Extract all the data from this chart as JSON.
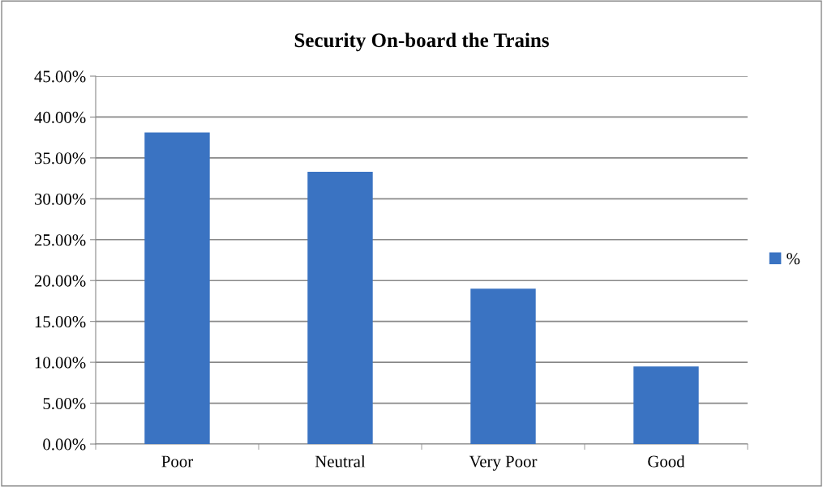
{
  "chart_data": {
    "type": "bar",
    "title": "Security On-board the Trains",
    "categories": [
      "Poor",
      "Neutral",
      "Very Poor",
      "Good"
    ],
    "series": [
      {
        "name": "%",
        "color": "#3a73c2",
        "values": [
          38.1,
          33.3,
          19.0,
          9.5
        ]
      }
    ],
    "ylim": [
      0,
      45
    ],
    "yticks": [
      {
        "value": 0,
        "label": "0.00%"
      },
      {
        "value": 5,
        "label": "5.00%"
      },
      {
        "value": 10,
        "label": "10.00%"
      },
      {
        "value": 15,
        "label": "15.00%"
      },
      {
        "value": 20,
        "label": "20.00%"
      },
      {
        "value": 25,
        "label": "25.00%"
      },
      {
        "value": 30,
        "label": "30.00%"
      },
      {
        "value": 35,
        "label": "35.00%"
      },
      {
        "value": 40,
        "label": "40.00%"
      },
      {
        "value": 45,
        "label": "45.00%"
      }
    ],
    "grid": "y",
    "legend": "right"
  }
}
